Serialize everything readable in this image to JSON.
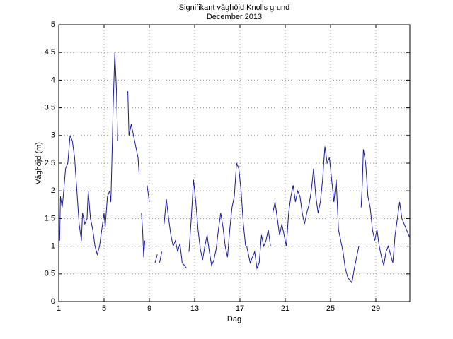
{
  "chart_data": {
    "type": "line",
    "title": "Signifikant våghöjd Knolls grund",
    "subtitle": "December 2013",
    "xlabel": "Dag",
    "ylabel": "Våghöjd (m)",
    "xlim": [
      1,
      32
    ],
    "ylim": [
      0,
      5
    ],
    "xticks": [
      1,
      5,
      9,
      13,
      17,
      21,
      25,
      29
    ],
    "yticks": [
      0,
      0.5,
      1,
      1.5,
      2,
      2.5,
      3,
      3.5,
      4,
      4.5,
      5
    ],
    "grid": true,
    "series": [
      {
        "color": "#1a1aa0",
        "x": [
          1.0,
          1.08,
          1.15,
          1.3,
          1.4,
          1.6,
          1.8,
          2.0,
          2.2,
          2.4,
          2.6,
          2.8,
          3.0,
          3.1,
          3.3,
          3.5,
          3.6,
          3.8,
          4.0,
          4.2,
          4.4,
          4.6,
          4.8,
          5.0,
          5.1,
          5.3,
          5.5,
          5.6,
          5.7,
          5.8,
          5.95,
          6.1,
          6.2,
          null,
          7.1,
          7.2,
          7.4,
          7.6,
          7.8,
          8.0,
          8.1,
          null,
          8.3,
          8.4,
          8.5,
          8.6,
          null,
          8.8,
          9.0,
          null,
          9.5,
          9.7,
          null,
          9.9,
          10.1,
          null,
          10.3,
          10.5,
          10.7,
          10.9,
          11.1,
          11.3,
          11.5,
          11.7,
          11.9,
          12.1,
          12.3,
          null,
          12.5,
          12.7,
          12.9,
          13.1,
          13.3,
          13.5,
          13.7,
          13.9,
          14.1,
          14.3,
          14.5,
          14.7,
          14.9,
          15.1,
          15.3,
          15.5,
          15.7,
          15.9,
          16.1,
          16.3,
          16.5,
          16.7,
          16.9,
          17.1,
          17.3,
          17.5,
          null,
          17.6,
          17.9,
          18.1,
          18.3,
          18.5,
          18.7,
          18.9,
          19.1,
          19.3,
          19.5,
          19.7,
          null,
          19.9,
          20.1,
          20.3,
          20.5,
          20.7,
          20.9,
          21.1,
          21.3,
          21.5,
          21.7,
          21.9,
          22.1,
          22.3,
          22.5,
          22.7,
          22.9,
          23.1,
          23.3,
          23.5,
          23.7,
          23.9,
          24.1,
          24.3,
          24.5,
          24.7,
          24.9,
          25.1,
          25.3,
          25.5,
          25.7,
          25.9,
          26.1,
          26.3,
          26.5,
          26.7,
          26.9,
          27.1,
          27.3,
          27.5,
          null,
          27.7,
          27.8,
          27.9,
          28.1,
          28.3,
          28.5,
          28.7,
          28.9,
          29.1,
          29.3,
          29.5,
          29.7,
          29.9,
          30.1,
          30.3,
          30.5,
          30.7,
          30.9,
          31.1,
          31.3,
          31.5,
          31.7,
          32.0
        ],
        "values": [
          1.3,
          1.1,
          1.9,
          1.7,
          1.9,
          2.4,
          2.5,
          3.0,
          2.9,
          2.6,
          2.0,
          1.4,
          1.1,
          1.6,
          1.4,
          1.5,
          2.0,
          1.5,
          1.3,
          1.0,
          0.85,
          1.0,
          1.3,
          1.6,
          1.35,
          1.9,
          2.0,
          1.8,
          2.6,
          3.5,
          4.5,
          3.8,
          2.9,
          null,
          3.8,
          3.0,
          3.2,
          3.0,
          2.8,
          2.6,
          2.3,
          null,
          1.6,
          1.3,
          0.8,
          1.1,
          null,
          2.1,
          1.8,
          null,
          0.7,
          0.85,
          null,
          0.7,
          0.9,
          null,
          1.4,
          1.85,
          1.5,
          1.2,
          1.0,
          1.1,
          0.9,
          1.05,
          0.7,
          0.65,
          0.6,
          null,
          0.9,
          1.5,
          2.2,
          1.8,
          1.3,
          0.95,
          0.75,
          1.0,
          1.2,
          0.9,
          0.65,
          0.75,
          0.95,
          1.3,
          1.6,
          1.35,
          1.0,
          0.8,
          1.3,
          1.7,
          1.9,
          2.5,
          2.4,
          2.0,
          1.4,
          1.0,
          null,
          1.0,
          0.7,
          0.8,
          0.9,
          0.6,
          0.7,
          1.2,
          1.0,
          1.1,
          1.3,
          1.0,
          null,
          1.6,
          1.8,
          1.5,
          1.2,
          1.4,
          1.2,
          1.0,
          1.6,
          1.9,
          2.1,
          1.8,
          2.0,
          1.9,
          1.6,
          1.4,
          1.6,
          1.75,
          2.0,
          2.4,
          1.9,
          1.6,
          1.8,
          2.2,
          2.8,
          2.5,
          2.6,
          2.2,
          1.8,
          2.2,
          1.3,
          1.1,
          0.9,
          0.6,
          0.45,
          0.38,
          0.35,
          0.6,
          0.8,
          1.0,
          null,
          1.7,
          2.1,
          2.75,
          2.5,
          1.9,
          1.7,
          1.3,
          1.1,
          1.3,
          1.0,
          0.8,
          0.65,
          0.9,
          1.0,
          0.85,
          0.7,
          1.2,
          1.5,
          1.8,
          1.5,
          1.4,
          1.3,
          1.15
        ]
      }
    ]
  }
}
